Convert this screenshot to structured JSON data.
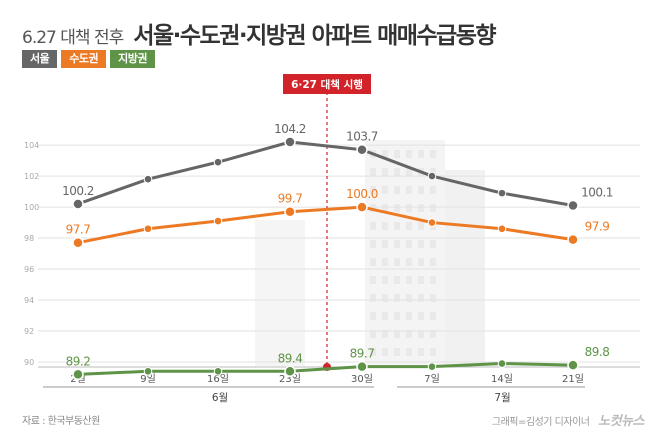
{
  "header": {
    "prefix": "6.27 대책 전후",
    "title": "서울·수도권·지방권 아파트 매매수급동향"
  },
  "colors": {
    "seoul": "#666666",
    "capital": "#ec7a24",
    "regional": "#5f9448",
    "marker": "#d2232a"
  },
  "footer": {
    "source": "자료 : 한국부동산원",
    "credit": "그래픽=김성기 디자이너",
    "brand": "노컷뉴스"
  },
  "chart_data": {
    "type": "line",
    "annotation": "6·27 대책 시행",
    "categories": [
      "2일",
      "9일",
      "16일",
      "23일",
      "30일",
      "7일",
      "14일",
      "21일"
    ],
    "month_groups": [
      {
        "label": "6월",
        "from": 0,
        "to": 4
      },
      {
        "label": "7월",
        "from": 5,
        "to": 7
      }
    ],
    "ylim": [
      90,
      105
    ],
    "yticks": [
      90,
      92,
      94,
      96,
      98,
      100,
      102,
      104
    ],
    "series": [
      {
        "name": "서울",
        "key": "seoul",
        "values": [
          100.2,
          101.8,
          102.9,
          104.2,
          103.7,
          102.0,
          100.9,
          100.1
        ],
        "labels": [
          "100.2",
          null,
          null,
          "104.2",
          "103.7",
          null,
          null,
          "100.1"
        ]
      },
      {
        "name": "수도권",
        "key": "capital",
        "values": [
          97.7,
          98.6,
          99.1,
          99.7,
          100.0,
          99.0,
          98.6,
          97.9
        ],
        "labels": [
          "97.7",
          null,
          null,
          "99.7",
          "100.0",
          null,
          null,
          "97.9"
        ]
      },
      {
        "name": "지방권",
        "key": "regional",
        "values": [
          89.2,
          89.4,
          89.4,
          89.4,
          89.7,
          89.7,
          89.9,
          89.8
        ],
        "labels": [
          "89.2",
          null,
          null,
          "89.4",
          "89.7",
          null,
          null,
          "89.8"
        ]
      }
    ]
  }
}
